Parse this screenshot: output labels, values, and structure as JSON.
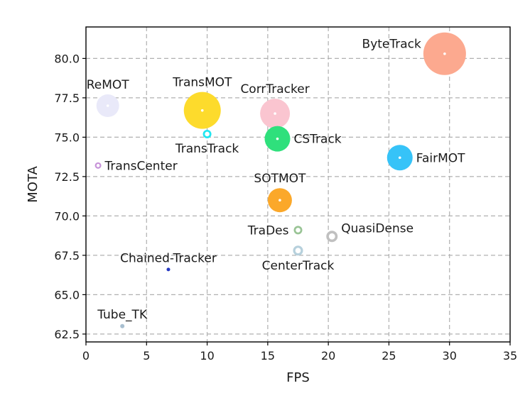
{
  "chart_data": {
    "type": "scatter",
    "title": "",
    "xlabel": "FPS",
    "ylabel": "MOTA",
    "xlim": [
      0,
      35
    ],
    "ylim": [
      62.0,
      82.0
    ],
    "x_ticks": [
      "0",
      "5",
      "10",
      "15",
      "20",
      "25",
      "30",
      "35"
    ],
    "x_tick_values": [
      0,
      5,
      10,
      15,
      20,
      25,
      30,
      35
    ],
    "y_ticks": [
      "62.5",
      "65.0",
      "67.5",
      "70.0",
      "72.5",
      "75.0",
      "77.5",
      "80.0"
    ],
    "y_tick_values": [
      62.5,
      65.0,
      67.5,
      70.0,
      72.5,
      75.0,
      77.5,
      80.0
    ],
    "grid": true,
    "bubble_size_legend": false,
    "points": [
      {
        "name": "ByteTrack",
        "x": 29.6,
        "y": 80.3,
        "size": 30.0,
        "style": "filled",
        "color": "#fca98f",
        "label_pos": "left-above"
      },
      {
        "name": "ReMOT",
        "x": 1.8,
        "y": 77.0,
        "size": 16.0,
        "style": "filled",
        "color": "#e9e9f9",
        "label_pos": "above"
      },
      {
        "name": "TransMOT",
        "x": 9.6,
        "y": 76.7,
        "size": 26.0,
        "style": "filled",
        "color": "#fddb2c",
        "label_pos": "above"
      },
      {
        "name": "CorrTracker",
        "x": 15.6,
        "y": 76.5,
        "size": 21.0,
        "style": "filled",
        "color": "#fac5d0",
        "label_pos": "above"
      },
      {
        "name": "TransTrack",
        "x": 10.0,
        "y": 75.2,
        "size": 6.0,
        "style": "ring",
        "color": "#22e6f0",
        "label_pos": "below"
      },
      {
        "name": "CSTrack",
        "x": 15.8,
        "y": 74.9,
        "size": 18.0,
        "style": "filled",
        "color": "#2fe07c",
        "label_pos": "right"
      },
      {
        "name": "FairMOT",
        "x": 25.9,
        "y": 73.7,
        "size": 18.0,
        "style": "filled",
        "color": "#36c3f8",
        "label_pos": "right"
      },
      {
        "name": "TransCenter",
        "x": 1.0,
        "y": 73.2,
        "size": 4.5,
        "style": "ring",
        "color": "#c793d9",
        "label_pos": "right"
      },
      {
        "name": "SOTMOT",
        "x": 16.0,
        "y": 71.0,
        "size": 17.0,
        "style": "filled",
        "color": "#fba82a",
        "label_pos": "above"
      },
      {
        "name": "TraDes",
        "x": 17.5,
        "y": 69.1,
        "size": 6.0,
        "style": "ring",
        "color": "#99c495",
        "label_pos": "left"
      },
      {
        "name": "QuasiDense",
        "x": 20.3,
        "y": 68.7,
        "size": 8.0,
        "style": "ring",
        "color": "#c0c0c0",
        "label_pos": "right-above"
      },
      {
        "name": "CenterTrack",
        "x": 17.5,
        "y": 67.8,
        "size": 7.0,
        "style": "ring",
        "color": "#b6d0dc",
        "label_pos": "below"
      },
      {
        "name": "Chained-Tracker",
        "x": 6.8,
        "y": 66.6,
        "size": 2.5,
        "style": "dot",
        "color": "#2438c2",
        "label_pos": "above"
      },
      {
        "name": "Tube_TK",
        "x": 3.0,
        "y": 63.0,
        "size": 3.0,
        "style": "dot",
        "color": "#a8bfd0",
        "label_pos": "above"
      }
    ]
  }
}
